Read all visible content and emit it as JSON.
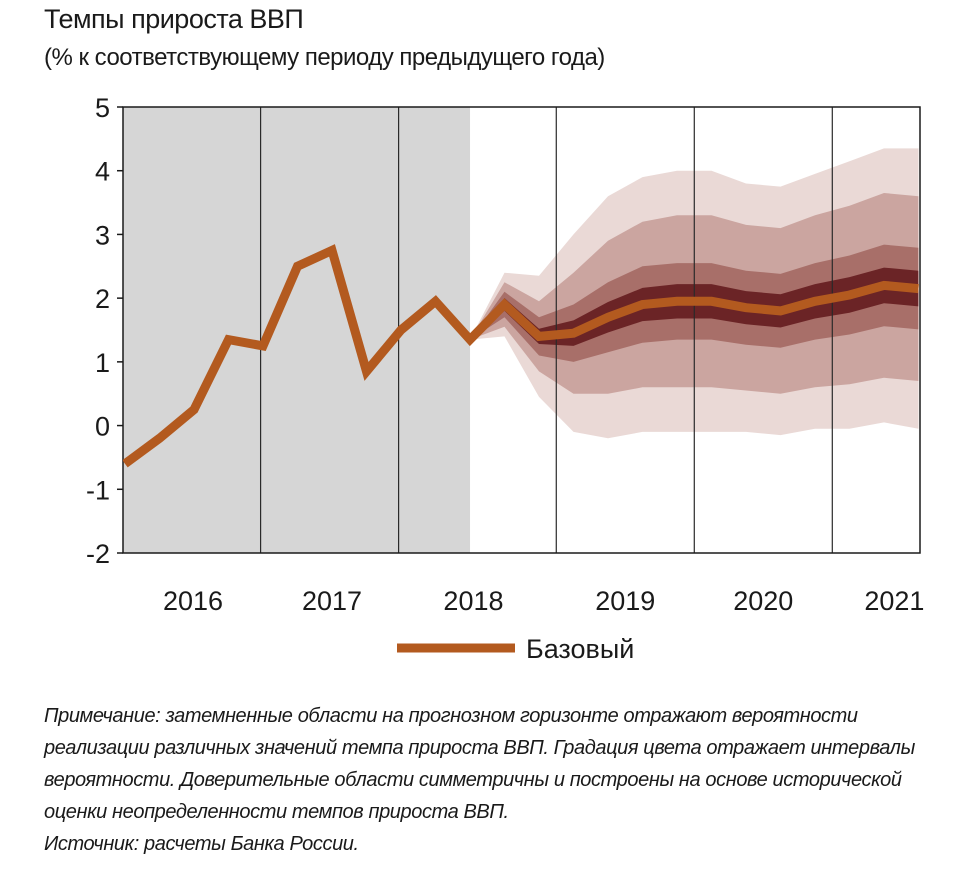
{
  "title": "Темпы прироста ВВП",
  "subtitle": "(% к соответствующему периоду предыдущего года)",
  "note": {
    "text": "Примечание: затемненные области на прогнозном горизонте отражают вероятности реализации различных значений темпа прироста ВВП. Градация цвета отражает интервалы вероятности. Доверительные области симметричны и построены на основе исторической оценки неопределенности темпов прироста ВВП.",
    "source": "Источник: расчеты Банка России."
  },
  "chart_data": {
    "type": "line",
    "title": "Темпы прироста ВВП",
    "ylim": [
      -2,
      5
    ],
    "yticks": [
      -2,
      -1,
      0,
      1,
      2,
      3,
      4,
      5
    ],
    "year_labels": [
      "2016",
      "2017",
      "2018",
      "2019",
      "2020",
      "2021"
    ],
    "historical_shading_end": "2018 Q3",
    "grid": false,
    "legend": {
      "position": "bottom-center",
      "entries": [
        "Базовый"
      ]
    },
    "x": [
      "2016 Q1",
      "2016 Q2",
      "2016 Q3",
      "2016 Q4",
      "2017 Q1",
      "2017 Q2",
      "2017 Q3",
      "2017 Q4",
      "2018 Q1",
      "2018 Q2",
      "2018 Q3",
      "2018 Q4",
      "2019 Q1",
      "2019 Q2",
      "2019 Q3",
      "2019 Q4",
      "2020 Q1",
      "2020 Q2",
      "2020 Q3",
      "2020 Q4",
      "2021 Q1",
      "2021 Q2",
      "2021 Q3",
      "2021 Q4"
    ],
    "series": [
      {
        "name": "Базовый",
        "color": "#b35a1f",
        "values": [
          -0.6,
          -0.2,
          0.25,
          1.35,
          1.25,
          2.5,
          2.75,
          0.85,
          1.5,
          1.95,
          1.35,
          1.9,
          1.4,
          1.45,
          1.7,
          1.9,
          1.95,
          1.95,
          1.85,
          1.8,
          1.95,
          2.05,
          2.2,
          2.15
        ]
      }
    ],
    "fan_chart": {
      "start": "2018 Q3",
      "x": [
        "2018 Q3",
        "2018 Q4",
        "2019 Q1",
        "2019 Q2",
        "2019 Q3",
        "2019 Q4",
        "2020 Q1",
        "2020 Q2",
        "2020 Q3",
        "2020 Q4",
        "2021 Q1",
        "2021 Q2",
        "2021 Q3",
        "2021 Q4"
      ],
      "center": [
        1.35,
        1.9,
        1.4,
        1.45,
        1.7,
        1.9,
        1.95,
        1.95,
        1.85,
        1.8,
        1.95,
        2.05,
        2.2,
        2.15
      ],
      "bands": [
        {
          "interval": "outer",
          "half_width": [
            0,
            0.5,
            0.95,
            1.55,
            1.9,
            2.0,
            2.05,
            2.05,
            1.95,
            1.95,
            2.0,
            2.1,
            2.15,
            2.2
          ],
          "color": "#ead9d6"
        },
        {
          "interval": "mid",
          "half_width": [
            0,
            0.35,
            0.55,
            0.95,
            1.2,
            1.3,
            1.35,
            1.35,
            1.3,
            1.3,
            1.35,
            1.4,
            1.45,
            1.45
          ],
          "color": "#cba5a0"
        },
        {
          "interval": "inner",
          "half_width": [
            0,
            0.2,
            0.3,
            0.45,
            0.55,
            0.6,
            0.6,
            0.6,
            0.58,
            0.58,
            0.6,
            0.62,
            0.64,
            0.64
          ],
          "color": "#a86f69"
        },
        {
          "interval": "core",
          "half_width": [
            0,
            0.1,
            0.12,
            0.2,
            0.24,
            0.26,
            0.27,
            0.27,
            0.26,
            0.26,
            0.27,
            0.28,
            0.28,
            0.28
          ],
          "color": "#6b2426"
        }
      ]
    }
  }
}
